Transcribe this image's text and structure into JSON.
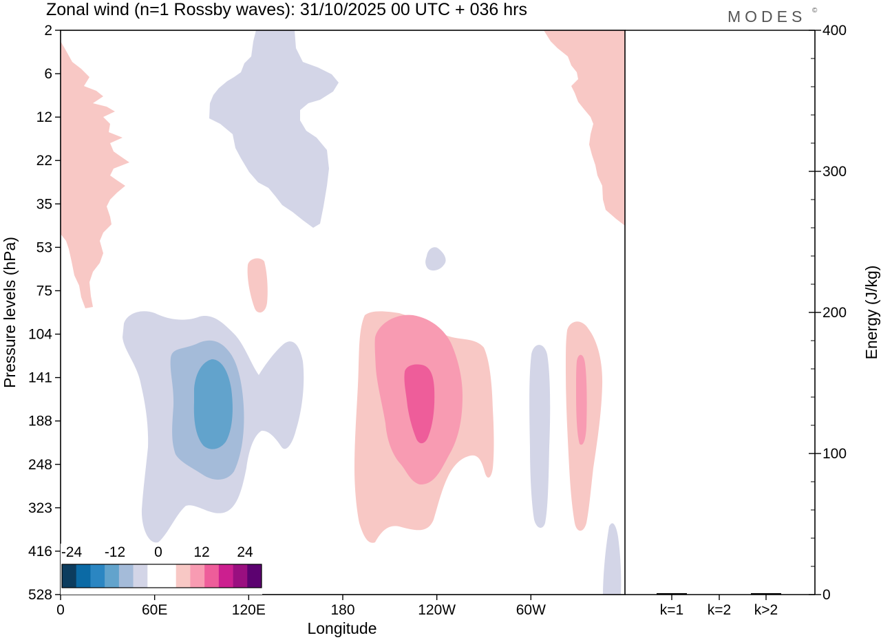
{
  "chart_data": [
    {
      "type": "heatmap",
      "title": "Zonal wind (n=1 Rossby waves):  31/10/2025  00 UTC  + 036 hrs",
      "xlabel": "Longitude",
      "ylabel": "Pressure levels (hPa)",
      "x_ticks": [
        {
          "label": "0",
          "lon": 0
        },
        {
          "label": "60E",
          "lon": 60
        },
        {
          "label": "120E",
          "lon": 120
        },
        {
          "label": "180",
          "lon": 180
        },
        {
          "label": "120W",
          "lon": 240
        },
        {
          "label": "60W",
          "lon": 300
        }
      ],
      "xlim": [
        0,
        360
      ],
      "y_levels": [
        "2",
        "6",
        "12",
        "22",
        "35",
        "53",
        "75",
        "104",
        "141",
        "188",
        "248",
        "323",
        "416",
        "528"
      ],
      "colorbar": {
        "tick_labels": [
          "-24",
          "-12",
          "0",
          "12",
          "24"
        ],
        "tick_values": [
          -24,
          -12,
          0,
          12,
          24
        ],
        "colors": [
          "#0c3c5e",
          "#0b6aa5",
          "#2b86c2",
          "#62a3cc",
          "#a4bbd9",
          "#d3d5e7",
          "#ffffff",
          "#ffffff",
          "#f8c8c5",
          "#f89bb2",
          "#ee5d9a",
          "#cc1f8f",
          "#9a0f80",
          "#5c0270"
        ]
      },
      "contours": [
        {
          "sign": "positive",
          "level": 1,
          "region": "upper-left near 0-45E, 2-75 hPa"
        },
        {
          "sign": "negative",
          "level": 1,
          "region": "upper 95-180E, 2-53 hPa"
        },
        {
          "sign": "positive",
          "level": 1,
          "region": "upper-right near 300-360E, 2-53 hPa"
        },
        {
          "sign": "positive",
          "level": 1,
          "region": "small patch near 120E, 53-104 hPa"
        },
        {
          "sign": "negative",
          "level": 1,
          "region": "small patch near 115W, 53 hPa"
        },
        {
          "sign": "negative",
          "level": 1,
          "region": "35-155E, 104-416 hPa"
        },
        {
          "sign": "negative",
          "level": 2,
          "region": "70-115E, 104-248 hPa"
        },
        {
          "sign": "negative",
          "level": 3,
          "region": "85-110E, 141-188 hPa"
        },
        {
          "sign": "positive",
          "level": 1,
          "region": "190-280E, 104-416 hPa"
        },
        {
          "sign": "positive",
          "level": 2,
          "region": "200-255E, 104-248 hPa"
        },
        {
          "sign": "positive",
          "level": 3,
          "region": "225-245E, 141-188 hPa"
        },
        {
          "sign": "negative",
          "level": 1,
          "region": "300-310E, 104-323 hPa"
        },
        {
          "sign": "positive",
          "level": 1,
          "region": "320-345E, 104-416 hPa"
        },
        {
          "sign": "positive",
          "level": 2,
          "region": "328-334E, 141-248 hPa"
        },
        {
          "sign": "negative",
          "level": 1,
          "region": "348-358E, 416-528 hPa"
        }
      ]
    },
    {
      "type": "bar",
      "categories": [
        "k=1",
        "k=2",
        "k>2"
      ],
      "values": [
        1,
        0,
        1
      ],
      "ylabel": "Energy (J/kg)",
      "ylim": [
        0,
        400
      ],
      "y_ticks": [
        "0",
        "100",
        "200",
        "300",
        "400"
      ]
    }
  ],
  "brand": "MODES",
  "brand_mark": "©"
}
